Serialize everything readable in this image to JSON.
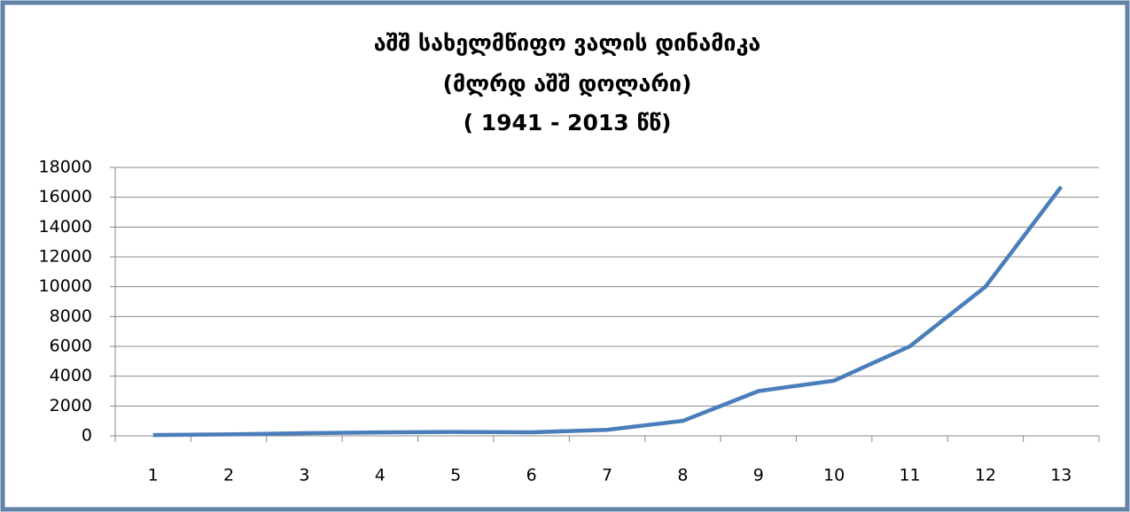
{
  "chart_data": {
    "type": "line",
    "title": [
      "აშშ სახელმწიფო ვალის დინამიკა",
      "(მლრდ აშშ დოლარი)",
      "( 1941 - 2013 წწ)"
    ],
    "categories": [
      "1",
      "2",
      "3",
      "4",
      "5",
      "6",
      "7",
      "8",
      "9",
      "10",
      "11",
      "12",
      "13"
    ],
    "series": [
      {
        "color": "#4a7ebb",
        "values": [
          50,
          100,
          180,
          230,
          260,
          240,
          400,
          1000,
          3000,
          3700,
          6000,
          10000,
          16700
        ]
      }
    ],
    "ylim": [
      0,
      18000
    ],
    "yticks": [
      0,
      2000,
      4000,
      6000,
      8000,
      10000,
      12000,
      14000,
      16000,
      18000
    ],
    "grid": true
  }
}
